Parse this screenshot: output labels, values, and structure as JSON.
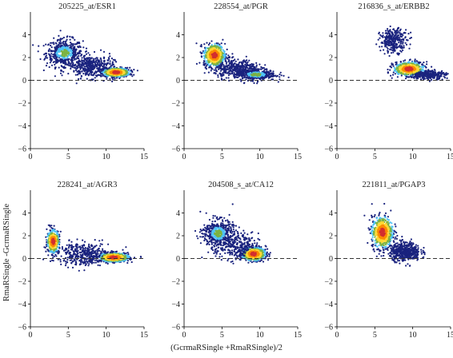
{
  "figure": {
    "xlabel": "(GcrmaRSingle +RmaRSingle)/2",
    "ylabel": "RmaRSingle -GcrmaRSingle"
  },
  "chart_data": [
    {
      "type": "scatter",
      "title": "205225_at/ESR1",
      "xlim": [
        0,
        15
      ],
      "ylim": [
        -6,
        6
      ],
      "xticks": [
        0,
        5,
        10,
        15
      ],
      "yticks": [
        -6,
        -4,
        -2,
        0,
        2,
        4
      ],
      "reference_line_y": 0,
      "density_clusters": [
        {
          "x": 4.5,
          "y": 2.4,
          "sx": 1.2,
          "sy": 0.6,
          "peak": "green",
          "n": 500
        },
        {
          "x": 11.3,
          "y": 0.7,
          "sx": 0.9,
          "sy": 0.2,
          "peak": "red",
          "n": 600
        },
        {
          "x": 8.0,
          "y": 1.2,
          "sx": 1.5,
          "sy": 0.5,
          "peak": "blue",
          "n": 400
        }
      ]
    },
    {
      "type": "scatter",
      "title": "228554_at/PGR",
      "xlim": [
        0,
        15
      ],
      "ylim": [
        -6,
        6
      ],
      "xticks": [
        0,
        5,
        10,
        15
      ],
      "yticks": [
        -6,
        -4,
        -2,
        0,
        2,
        4
      ],
      "reference_line_y": 0,
      "density_clusters": [
        {
          "x": 4.0,
          "y": 2.2,
          "sx": 0.7,
          "sy": 0.5,
          "peak": "red",
          "n": 600
        },
        {
          "x": 9.5,
          "y": 0.5,
          "sx": 1.3,
          "sy": 0.25,
          "peak": "green",
          "n": 400
        },
        {
          "x": 7.0,
          "y": 1.0,
          "sx": 1.5,
          "sy": 0.4,
          "peak": "blue",
          "n": 400
        }
      ]
    },
    {
      "type": "scatter",
      "title": "216836_s_at/ERBB2",
      "xlim": [
        0,
        15
      ],
      "ylim": [
        -6,
        6
      ],
      "xticks": [
        0,
        5,
        10,
        15
      ],
      "yticks": [
        -6,
        -4,
        -2,
        0,
        2,
        4
      ],
      "reference_line_y": 0,
      "density_clusters": [
        {
          "x": 9.5,
          "y": 1.0,
          "sx": 1.0,
          "sy": 0.3,
          "peak": "red",
          "n": 600
        },
        {
          "x": 7.5,
          "y": 3.5,
          "sx": 0.9,
          "sy": 0.5,
          "peak": "blue",
          "n": 300
        },
        {
          "x": 12.0,
          "y": 0.5,
          "sx": 1.2,
          "sy": 0.2,
          "peak": "blue",
          "n": 300
        }
      ]
    },
    {
      "type": "scatter",
      "title": "228241_at/AGR3",
      "xlim": [
        0,
        15
      ],
      "ylim": [
        -6,
        6
      ],
      "xticks": [
        0,
        5,
        10,
        15
      ],
      "yticks": [
        -6,
        -4,
        -2,
        0,
        2,
        4
      ],
      "reference_line_y": 0,
      "density_clusters": [
        {
          "x": 3.0,
          "y": 1.5,
          "sx": 0.4,
          "sy": 0.5,
          "peak": "red",
          "n": 400
        },
        {
          "x": 11.0,
          "y": 0.1,
          "sx": 1.0,
          "sy": 0.2,
          "peak": "red",
          "n": 600
        },
        {
          "x": 7.0,
          "y": 0.4,
          "sx": 1.7,
          "sy": 0.5,
          "peak": "blue",
          "n": 400
        }
      ]
    },
    {
      "type": "scatter",
      "title": "204508_s_at/CA12",
      "xlim": [
        0,
        15
      ],
      "ylim": [
        -6,
        6
      ],
      "xticks": [
        0,
        5,
        10,
        15
      ],
      "yticks": [
        -6,
        -4,
        -2,
        0,
        2,
        4
      ],
      "reference_line_y": 0,
      "density_clusters": [
        {
          "x": 4.5,
          "y": 2.2,
          "sx": 1.0,
          "sy": 0.6,
          "peak": "green",
          "n": 500
        },
        {
          "x": 9.2,
          "y": 0.4,
          "sx": 0.8,
          "sy": 0.3,
          "peak": "red",
          "n": 600
        },
        {
          "x": 7.0,
          "y": 1.0,
          "sx": 1.4,
          "sy": 0.6,
          "peak": "blue",
          "n": 300
        }
      ]
    },
    {
      "type": "scatter",
      "title": "221811_at/PGAP3",
      "xlim": [
        0,
        15
      ],
      "ylim": [
        -6,
        6
      ],
      "xticks": [
        0,
        5,
        10,
        15
      ],
      "yticks": [
        -6,
        -4,
        -2,
        0,
        2,
        4
      ],
      "reference_line_y": 0,
      "density_clusters": [
        {
          "x": 6.0,
          "y": 2.3,
          "sx": 0.7,
          "sy": 0.7,
          "peak": "red",
          "n": 700
        },
        {
          "x": 9.0,
          "y": 0.6,
          "sx": 1.0,
          "sy": 0.4,
          "peak": "blue",
          "n": 500
        }
      ]
    }
  ],
  "colors": {
    "blue": "#1a237e",
    "lightblue": "#4fc3f7",
    "green": "#7cb342",
    "yellow": "#fdd835",
    "orange": "#fb8c00",
    "red": "#d32f2f",
    "dashed_line": "#333333"
  }
}
